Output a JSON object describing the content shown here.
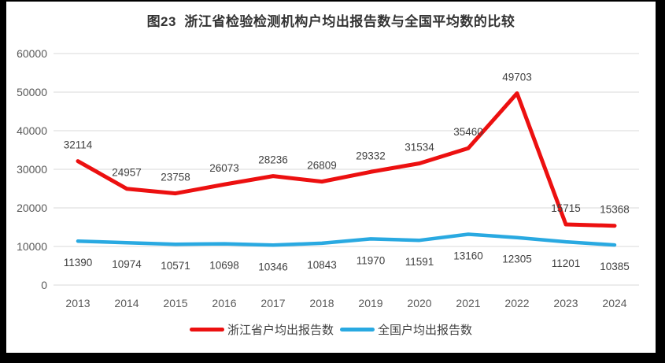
{
  "chart": {
    "title": "图23  浙江省检验检测机构户均出报告数与全国平均数的比较"
  },
  "chart_data": {
    "type": "line",
    "title": "图23  浙江省检验检测机构户均出报告数与全国平均数的比较",
    "categories": [
      "2013",
      "2014",
      "2015",
      "2016",
      "2017",
      "2018",
      "2019",
      "2020",
      "2021",
      "2022",
      "2023",
      "2024"
    ],
    "series": [
      {
        "name": "浙江省户均出报告数",
        "color": "#EC1010",
        "label_position": "above",
        "stroke_width": 5,
        "values": [
          32114,
          24957,
          23758,
          26073,
          28236,
          26809,
          29332,
          31534,
          35460,
          49703,
          15715,
          15368
        ]
      },
      {
        "name": "全国户均出报告数",
        "color": "#29A9E1",
        "label_position": "below",
        "stroke_width": 4.5,
        "values": [
          11390,
          10974,
          10571,
          10698,
          10346,
          10843,
          11970,
          11591,
          13160,
          12305,
          11201,
          10385
        ]
      }
    ],
    "xlabel": "",
    "ylabel": "",
    "ylim": [
      0,
      60000
    ],
    "yticks": [
      "0",
      "10000",
      "20000",
      "30000",
      "40000",
      "50000",
      "60000"
    ],
    "grid": true,
    "legend_position": "bottom"
  },
  "colors": {
    "frame": "#000000",
    "background": "#FFFFFF",
    "grid": "#D9D9D9",
    "axis_label": "#595959",
    "data_label": "#404040",
    "title": "#333333",
    "legend_text": "#404040"
  }
}
